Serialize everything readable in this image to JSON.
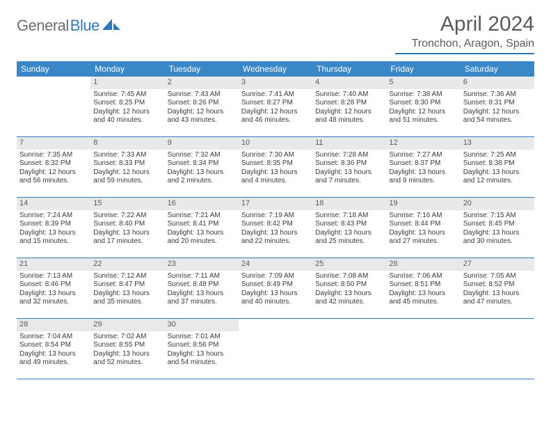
{
  "logo": {
    "text1": "General",
    "text2": "Blue"
  },
  "title": "April 2024",
  "location": "Tronchon, Aragon, Spain",
  "colors": {
    "header_bg": "#3a87c8",
    "rule": "#2f78b9",
    "daynum_bg": "#e9e9e9",
    "text": "#3a3a3a",
    "muted": "#5a5a5a"
  },
  "weekdays": [
    "Sunday",
    "Monday",
    "Tuesday",
    "Wednesday",
    "Thursday",
    "Friday",
    "Saturday"
  ],
  "weeks": [
    [
      {
        "n": "",
        "sr": "",
        "ss": "",
        "d1": "",
        "d2": "",
        "empty": true
      },
      {
        "n": "1",
        "sr": "Sunrise: 7:45 AM",
        "ss": "Sunset: 8:25 PM",
        "d1": "Daylight: 12 hours",
        "d2": "and 40 minutes."
      },
      {
        "n": "2",
        "sr": "Sunrise: 7:43 AM",
        "ss": "Sunset: 8:26 PM",
        "d1": "Daylight: 12 hours",
        "d2": "and 43 minutes."
      },
      {
        "n": "3",
        "sr": "Sunrise: 7:41 AM",
        "ss": "Sunset: 8:27 PM",
        "d1": "Daylight: 12 hours",
        "d2": "and 46 minutes."
      },
      {
        "n": "4",
        "sr": "Sunrise: 7:40 AM",
        "ss": "Sunset: 8:28 PM",
        "d1": "Daylight: 12 hours",
        "d2": "and 48 minutes."
      },
      {
        "n": "5",
        "sr": "Sunrise: 7:38 AM",
        "ss": "Sunset: 8:30 PM",
        "d1": "Daylight: 12 hours",
        "d2": "and 51 minutes."
      },
      {
        "n": "6",
        "sr": "Sunrise: 7:36 AM",
        "ss": "Sunset: 8:31 PM",
        "d1": "Daylight: 12 hours",
        "d2": "and 54 minutes."
      }
    ],
    [
      {
        "n": "7",
        "sr": "Sunrise: 7:35 AM",
        "ss": "Sunset: 8:32 PM",
        "d1": "Daylight: 12 hours",
        "d2": "and 56 minutes."
      },
      {
        "n": "8",
        "sr": "Sunrise: 7:33 AM",
        "ss": "Sunset: 8:33 PM",
        "d1": "Daylight: 12 hours",
        "d2": "and 59 minutes."
      },
      {
        "n": "9",
        "sr": "Sunrise: 7:32 AM",
        "ss": "Sunset: 8:34 PM",
        "d1": "Daylight: 13 hours",
        "d2": "and 2 minutes."
      },
      {
        "n": "10",
        "sr": "Sunrise: 7:30 AM",
        "ss": "Sunset: 8:35 PM",
        "d1": "Daylight: 13 hours",
        "d2": "and 4 minutes."
      },
      {
        "n": "11",
        "sr": "Sunrise: 7:28 AM",
        "ss": "Sunset: 8:36 PM",
        "d1": "Daylight: 13 hours",
        "d2": "and 7 minutes."
      },
      {
        "n": "12",
        "sr": "Sunrise: 7:27 AM",
        "ss": "Sunset: 8:37 PM",
        "d1": "Daylight: 13 hours",
        "d2": "and 9 minutes."
      },
      {
        "n": "13",
        "sr": "Sunrise: 7:25 AM",
        "ss": "Sunset: 8:38 PM",
        "d1": "Daylight: 13 hours",
        "d2": "and 12 minutes."
      }
    ],
    [
      {
        "n": "14",
        "sr": "Sunrise: 7:24 AM",
        "ss": "Sunset: 8:39 PM",
        "d1": "Daylight: 13 hours",
        "d2": "and 15 minutes."
      },
      {
        "n": "15",
        "sr": "Sunrise: 7:22 AM",
        "ss": "Sunset: 8:40 PM",
        "d1": "Daylight: 13 hours",
        "d2": "and 17 minutes."
      },
      {
        "n": "16",
        "sr": "Sunrise: 7:21 AM",
        "ss": "Sunset: 8:41 PM",
        "d1": "Daylight: 13 hours",
        "d2": "and 20 minutes."
      },
      {
        "n": "17",
        "sr": "Sunrise: 7:19 AM",
        "ss": "Sunset: 8:42 PM",
        "d1": "Daylight: 13 hours",
        "d2": "and 22 minutes."
      },
      {
        "n": "18",
        "sr": "Sunrise: 7:18 AM",
        "ss": "Sunset: 8:43 PM",
        "d1": "Daylight: 13 hours",
        "d2": "and 25 minutes."
      },
      {
        "n": "19",
        "sr": "Sunrise: 7:16 AM",
        "ss": "Sunset: 8:44 PM",
        "d1": "Daylight: 13 hours",
        "d2": "and 27 minutes."
      },
      {
        "n": "20",
        "sr": "Sunrise: 7:15 AM",
        "ss": "Sunset: 8:45 PM",
        "d1": "Daylight: 13 hours",
        "d2": "and 30 minutes."
      }
    ],
    [
      {
        "n": "21",
        "sr": "Sunrise: 7:13 AM",
        "ss": "Sunset: 8:46 PM",
        "d1": "Daylight: 13 hours",
        "d2": "and 32 minutes."
      },
      {
        "n": "22",
        "sr": "Sunrise: 7:12 AM",
        "ss": "Sunset: 8:47 PM",
        "d1": "Daylight: 13 hours",
        "d2": "and 35 minutes."
      },
      {
        "n": "23",
        "sr": "Sunrise: 7:11 AM",
        "ss": "Sunset: 8:48 PM",
        "d1": "Daylight: 13 hours",
        "d2": "and 37 minutes."
      },
      {
        "n": "24",
        "sr": "Sunrise: 7:09 AM",
        "ss": "Sunset: 8:49 PM",
        "d1": "Daylight: 13 hours",
        "d2": "and 40 minutes."
      },
      {
        "n": "25",
        "sr": "Sunrise: 7:08 AM",
        "ss": "Sunset: 8:50 PM",
        "d1": "Daylight: 13 hours",
        "d2": "and 42 minutes."
      },
      {
        "n": "26",
        "sr": "Sunrise: 7:06 AM",
        "ss": "Sunset: 8:51 PM",
        "d1": "Daylight: 13 hours",
        "d2": "and 45 minutes."
      },
      {
        "n": "27",
        "sr": "Sunrise: 7:05 AM",
        "ss": "Sunset: 8:52 PM",
        "d1": "Daylight: 13 hours",
        "d2": "and 47 minutes."
      }
    ],
    [
      {
        "n": "28",
        "sr": "Sunrise: 7:04 AM",
        "ss": "Sunset: 8:54 PM",
        "d1": "Daylight: 13 hours",
        "d2": "and 49 minutes."
      },
      {
        "n": "29",
        "sr": "Sunrise: 7:02 AM",
        "ss": "Sunset: 8:55 PM",
        "d1": "Daylight: 13 hours",
        "d2": "and 52 minutes."
      },
      {
        "n": "30",
        "sr": "Sunrise: 7:01 AM",
        "ss": "Sunset: 8:56 PM",
        "d1": "Daylight: 13 hours",
        "d2": "and 54 minutes."
      },
      {
        "n": "",
        "sr": "",
        "ss": "",
        "d1": "",
        "d2": "",
        "empty": true
      },
      {
        "n": "",
        "sr": "",
        "ss": "",
        "d1": "",
        "d2": "",
        "empty": true
      },
      {
        "n": "",
        "sr": "",
        "ss": "",
        "d1": "",
        "d2": "",
        "empty": true
      },
      {
        "n": "",
        "sr": "",
        "ss": "",
        "d1": "",
        "d2": "",
        "empty": true
      }
    ]
  ]
}
